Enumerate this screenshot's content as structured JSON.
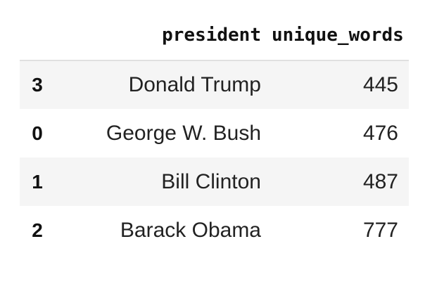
{
  "table": {
    "columns": [
      "president",
      "unique_words"
    ],
    "rows": [
      {
        "index": "3",
        "president": "Donald Trump",
        "unique_words": "445"
      },
      {
        "index": "0",
        "president": "George W. Bush",
        "unique_words": "476"
      },
      {
        "index": "1",
        "president": "Bill Clinton",
        "unique_words": "487"
      },
      {
        "index": "2",
        "president": "Barack Obama",
        "unique_words": "777"
      }
    ]
  },
  "colors": {
    "stripe": "#f5f5f5",
    "header_rule": "#e0e0e0",
    "text": "#111111"
  }
}
